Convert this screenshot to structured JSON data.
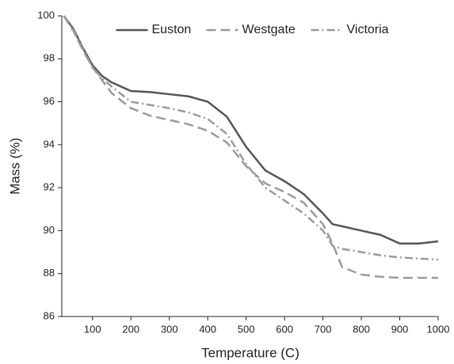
{
  "chart_data": {
    "type": "line",
    "x_label": "Temperature (C)",
    "y_label": "Mass (%)",
    "x": [
      25,
      50,
      75,
      100,
      125,
      150,
      200,
      250,
      300,
      350,
      400,
      450,
      500,
      550,
      600,
      650,
      700,
      725,
      750,
      800,
      850,
      900,
      950,
      1000
    ],
    "series": [
      {
        "name": "Euston",
        "color": "#555555",
        "dash": "solid",
        "values": [
          100,
          99.4,
          98.5,
          97.7,
          97.2,
          96.9,
          96.5,
          96.45,
          96.35,
          96.25,
          96.0,
          95.3,
          93.9,
          92.8,
          92.3,
          91.7,
          90.8,
          90.3,
          90.2,
          90.0,
          89.8,
          89.4,
          89.4,
          89.5
        ]
      },
      {
        "name": "Westgate",
        "color": "#9a9a9a",
        "dash": "dashed",
        "values": [
          100,
          99.3,
          98.4,
          97.6,
          97.0,
          96.4,
          95.7,
          95.35,
          95.15,
          94.95,
          94.65,
          94.1,
          93.0,
          92.2,
          91.8,
          91.3,
          90.3,
          89.4,
          88.3,
          87.95,
          87.85,
          87.8,
          87.8,
          87.8
        ]
      },
      {
        "name": "Victoria",
        "color": "#9a9a9a",
        "dash": "dashdot",
        "values": [
          100,
          99.35,
          98.45,
          97.6,
          97.1,
          96.7,
          96.0,
          95.85,
          95.7,
          95.5,
          95.2,
          94.5,
          93.1,
          92.0,
          91.4,
          90.8,
          90.0,
          89.3,
          89.15,
          89.0,
          88.85,
          88.75,
          88.7,
          88.65
        ]
      }
    ],
    "xlim": [
      20,
      1000
    ],
    "xticks": [
      100,
      200,
      300,
      400,
      500,
      600,
      700,
      800,
      900,
      1000
    ],
    "ylim": [
      86,
      100
    ],
    "yticks": [
      86,
      88,
      90,
      92,
      94,
      96,
      98,
      100
    ],
    "legend": "top"
  }
}
